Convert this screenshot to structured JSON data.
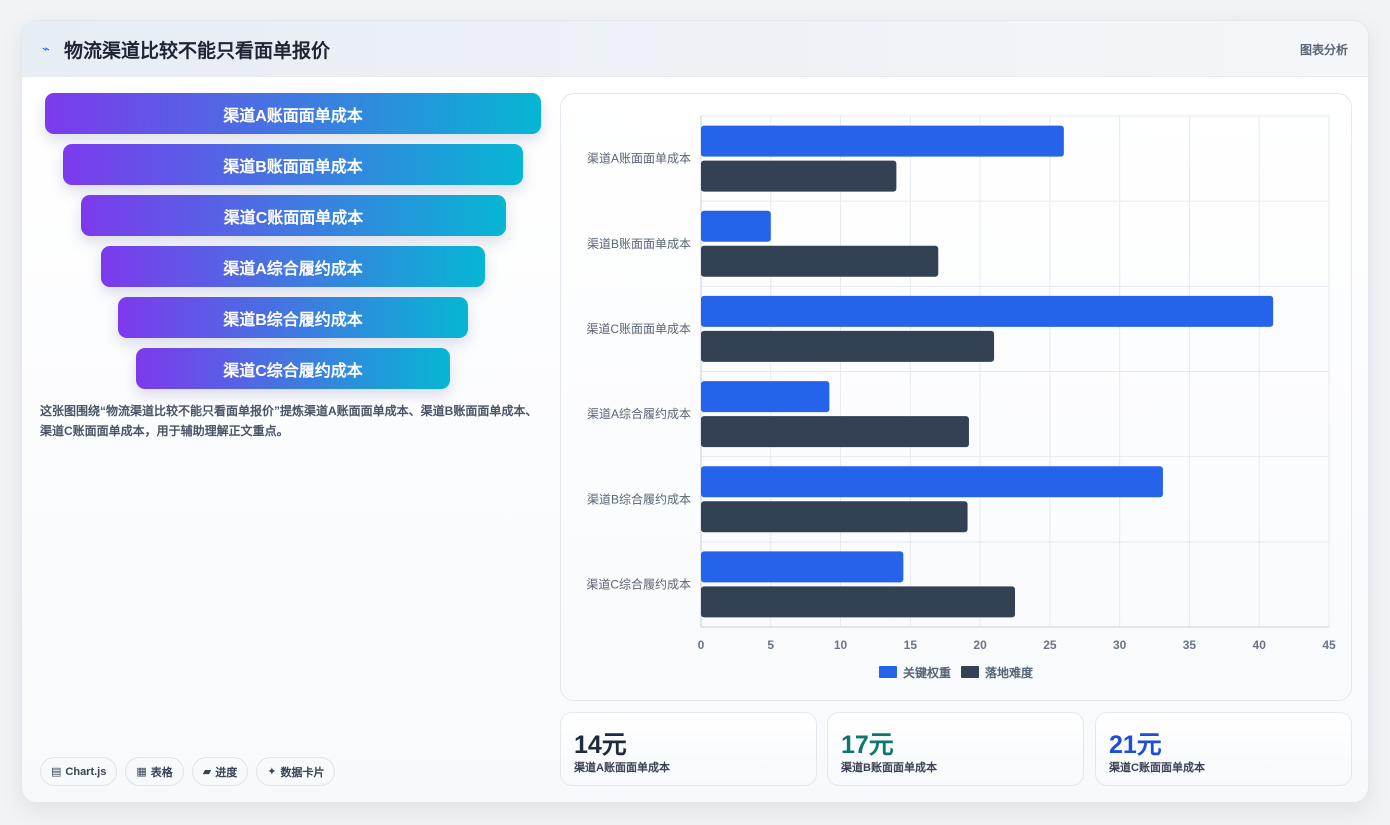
{
  "header": {
    "icon": "chart-line-icon",
    "title": "物流渠道比较不能只看面单报价",
    "tag": "图表分析"
  },
  "funnel": [
    "渠道A账面面单成本",
    "渠道B账面面单成本",
    "渠道C账面面单成本",
    "渠道A综合履约成本",
    "渠道B综合履约成本",
    "渠道C综合履约成本"
  ],
  "description": "这张图围绕“物流渠道比较不能只看面单报价”提炼渠道A账面面单成本、渠道B账面面单成本、渠道C账面面单成本，用于辅助理解正文重点。",
  "pills": [
    {
      "icon": "chart-icon",
      "label": "Chart.js"
    },
    {
      "icon": "table-icon",
      "label": "表格"
    },
    {
      "icon": "progress-icon",
      "label": "进度"
    },
    {
      "icon": "sparkle-icon",
      "label": "数据卡片"
    }
  ],
  "stats": [
    {
      "value": "14元",
      "label": "渠道A账面面单成本",
      "color": "#1f2a3c"
    },
    {
      "value": "17元",
      "label": "渠道B账面面单成本",
      "color": "#0f766e"
    },
    {
      "value": "21元",
      "label": "渠道C账面面单成本",
      "color": "#1d4ed8"
    }
  ],
  "chart_data": {
    "type": "bar",
    "orientation": "horizontal",
    "categories": [
      "渠道A账面面单成本",
      "渠道B账面面单成本",
      "渠道C账面面单成本",
      "渠道A综合履约成本",
      "渠道B综合履约成本",
      "渠道C综合履约成本"
    ],
    "series": [
      {
        "name": "关键权重",
        "color": "#2563eb",
        "values": [
          26,
          5,
          41,
          9.2,
          33.1,
          14.5
        ]
      },
      {
        "name": "落地难度",
        "color": "#334155",
        "values": [
          14,
          17,
          21,
          19.2,
          19.1,
          22.5
        ]
      }
    ],
    "xlim": [
      0,
      45
    ],
    "xticks": [
      0,
      5,
      10,
      15,
      20,
      25,
      30,
      35,
      40,
      45
    ],
    "grid": true,
    "legend": "bottom"
  }
}
